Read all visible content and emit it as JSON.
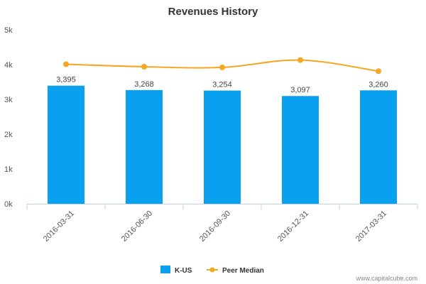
{
  "chart_data": {
    "type": "bar",
    "title": "Revenues History",
    "categories": [
      "2016-03-31",
      "2016-06-30",
      "2016-09-30",
      "2016-12-31",
      "2017-03-31"
    ],
    "series": [
      {
        "name": "K-US",
        "type": "bar",
        "color": "#0aa0f0",
        "values": [
          3395,
          3268,
          3254,
          3097,
          3260
        ],
        "labels": [
          "3,395",
          "3,268",
          "3,254",
          "3,097",
          "3,260"
        ]
      },
      {
        "name": "Peer Median",
        "type": "line",
        "color": "#f5a623",
        "values": [
          4010,
          3940,
          3920,
          4130,
          3810
        ]
      }
    ],
    "yticks": [
      "0k",
      "1k",
      "2k",
      "3k",
      "4k",
      "5k"
    ],
    "ylim": [
      0,
      5000
    ],
    "grid": false,
    "legend_position": "bottom"
  },
  "credit": "www.capitalcube.com"
}
